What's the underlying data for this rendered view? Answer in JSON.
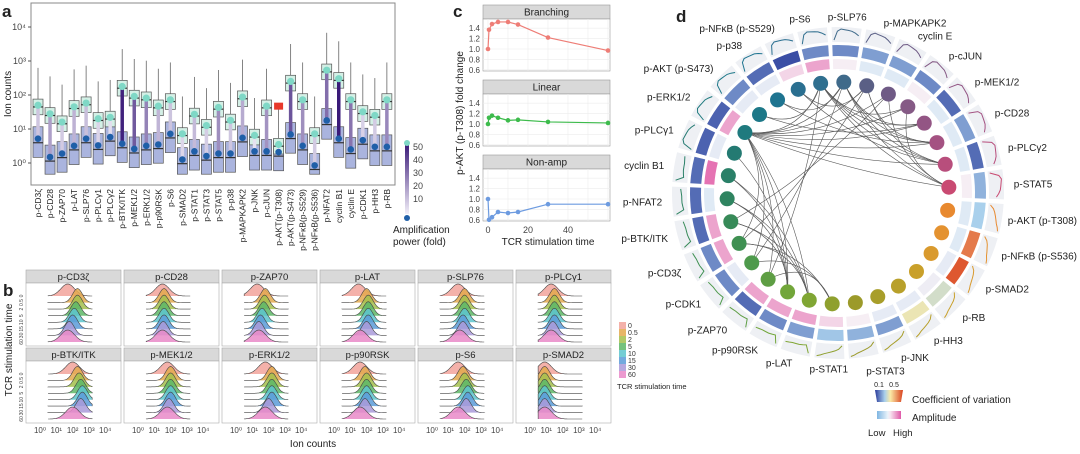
{
  "panel_labels": {
    "a": "a",
    "b": "b",
    "c": "c",
    "d": "d"
  },
  "chart_data": [
    {
      "type": "box",
      "panel": "a",
      "ylabel": "Ion counts",
      "yscale": "log",
      "yticks": [
        "10⁰",
        "10¹",
        "10²",
        "10³",
        "10⁴"
      ],
      "ylim": [
        0.4,
        30000
      ],
      "categories": [
        "p-CD3ζ",
        "p-CD28",
        "p-ZAP70",
        "p-LAT",
        "p-SLP76",
        "p-PLCγ1",
        "p-PLCγ2",
        "p-BTK/ITK",
        "p-MEK1/2",
        "p-ERK1/2",
        "p-p90RSK",
        "p-S6",
        "p-SMAD2",
        "p-STAT1",
        "p-STAT3",
        "p-STAT5",
        "p-p38",
        "p-MAPKAPK2",
        "p-JNK",
        "p-cJUN",
        "p-AKT(p-T308)",
        "p-AKT(p-S473)",
        "p-NFκB(p-S529)",
        "p-NFκB(p-S536)",
        "p-NFAT2",
        "cyclin B1",
        "cyclin E",
        "p-CDK1",
        "p-HH3",
        "p-RB"
      ],
      "amplified_median": [
        50,
        28,
        16,
        45,
        58,
        20,
        22,
        178,
        91,
        81,
        47,
        72,
        7.2,
        27,
        12.6,
        43,
        18,
        87,
        6.5,
        47,
        3.5,
        251,
        72,
        7.2,
        537,
        302,
        72,
        32,
        25,
        72
      ],
      "baseline_median": [
        5.2,
        1.5,
        1.9,
        3.2,
        5.2,
        3.3,
        5.8,
        3.7,
        2.6,
        3.2,
        3.5,
        7.2,
        1.26,
        2.2,
        1.6,
        1.9,
        1.9,
        5.5,
        2.2,
        2.2,
        2.1,
        6.9,
        3.2,
        0.85,
        17.8,
        5.2,
        2.5,
        4.7,
        3.0,
        3.0
      ],
      "highlight": {
        "category": "p-AKT(p-T308)",
        "value": 47,
        "color": "#e8392b"
      },
      "legend": {
        "title_line1": "Amplification",
        "title_line2": "power (fold)",
        "ticks": [
          "50",
          "40",
          "30",
          "20",
          "10"
        ],
        "range": [
          1,
          55
        ],
        "low_color": "#f1eef8",
        "high_color": "#3a1a78"
      }
    },
    {
      "type": "ridgeline",
      "panel": "b",
      "xlabel": "Ion counts",
      "ylabel": "TCR stimulation time",
      "xticks": [
        "10⁰",
        "10¹",
        "10²",
        "10³",
        "10⁴"
      ],
      "times": [
        "0",
        "0.5",
        "2",
        "5",
        "10",
        "15",
        "30",
        "60"
      ],
      "time_colors": [
        "#f2a39b",
        "#e3a94e",
        "#a3bf4c",
        "#5db766",
        "#5cc4cc",
        "#5a9bd8",
        "#a99ad9",
        "#e98ac8"
      ],
      "legend_title": "TCR stimulation time",
      "facets": [
        {
          "name": "p-CD3ζ",
          "peak_log10": [
            1.7,
            2.3,
            2.3,
            2.2,
            2.1,
            2.0,
            1.8,
            1.7
          ]
        },
        {
          "name": "p-CD28",
          "peak_log10": [
            1.5,
            1.6,
            1.6,
            1.6,
            1.6,
            1.6,
            1.55,
            1.5
          ]
        },
        {
          "name": "p-ZAP70",
          "peak_log10": [
            1.3,
            1.8,
            1.75,
            1.7,
            1.6,
            1.5,
            1.4,
            1.4
          ]
        },
        {
          "name": "p-LAT",
          "peak_log10": [
            1.5,
            2.0,
            2.1,
            2.1,
            2.1,
            2.1,
            2.0,
            1.6
          ]
        },
        {
          "name": "p-SLP76",
          "peak_log10": [
            1.6,
            2.0,
            2.0,
            2.0,
            2.0,
            1.9,
            1.9,
            1.7
          ]
        },
        {
          "name": "p-PLCγ1",
          "peak_log10": [
            1.3,
            1.5,
            1.5,
            1.5,
            1.5,
            1.5,
            1.4,
            1.3
          ]
        },
        {
          "name": "p-BTK/ITK",
          "peak_log10": [
            2.0,
            2.3,
            2.4,
            2.5,
            2.6,
            2.6,
            2.5,
            2.0
          ]
        },
        {
          "name": "p-MEK1/2",
          "peak_log10": [
            1.8,
            2.0,
            2.0,
            2.0,
            2.0,
            2.0,
            1.9,
            1.8
          ]
        },
        {
          "name": "p-ERK1/2",
          "peak_log10": [
            1.8,
            2.2,
            2.2,
            2.2,
            2.2,
            2.2,
            2.0,
            1.8
          ]
        },
        {
          "name": "p-p90RSK",
          "peak_log10": [
            1.6,
            1.9,
            2.0,
            2.0,
            2.0,
            2.0,
            1.9,
            1.6
          ]
        },
        {
          "name": "p-S6",
          "peak_log10": [
            1.6,
            1.9,
            2.0,
            2.1,
            2.2,
            2.2,
            2.1,
            1.6
          ]
        },
        {
          "name": "p-SMAD2",
          "peak_log10": [
            0.9,
            0.9,
            0.9,
            0.9,
            0.9,
            0.9,
            0.9,
            0.9
          ]
        }
      ]
    },
    {
      "type": "line",
      "panel": "c",
      "ylabel": "p-AKT (p-T308) fold change",
      "xlabel": "TCR stimulation time",
      "x": [
        0,
        0.5,
        2,
        5,
        10,
        15,
        30,
        60
      ],
      "xticks": [
        "0",
        "20",
        "40"
      ],
      "yticks": [
        "1.4",
        "1.2",
        "1.0",
        "0.8",
        "0.6"
      ],
      "ylim": [
        0.55,
        1.58
      ],
      "series": [
        {
          "name": "Branching",
          "color": "#ee7d76",
          "values": [
            1.0,
            1.37,
            1.48,
            1.52,
            1.52,
            1.47,
            1.22,
            0.97
          ]
        },
        {
          "name": "Linear",
          "color": "#3dbb4c",
          "values": [
            1.0,
            1.12,
            1.16,
            1.12,
            1.07,
            1.08,
            1.04,
            1.02
          ]
        },
        {
          "name": "Non-amp",
          "color": "#6d9be0",
          "values": [
            1.0,
            0.6,
            0.65,
            0.75,
            0.73,
            0.75,
            0.9,
            0.9
          ]
        }
      ]
    },
    {
      "type": "network",
      "panel": "d",
      "nodes": [
        "p-S6",
        "p-SLP76",
        "p-MAPKAPK2",
        "cyclin E",
        "p-cJUN",
        "p-MEK1/2",
        "p-CD28",
        "p-PLCγ2",
        "p-STAT5",
        "p-AKT (p-T308)",
        "p-NFκB (p-S536)",
        "p-SMAD2",
        "p-RB",
        "p-HH3",
        "p-JNK",
        "p-STAT3",
        "p-STAT1",
        "p-LAT",
        "p-p90RSK",
        "p-ZAP70",
        "p-CDK1",
        "p-CD3ζ",
        "p-BTK/ITK",
        "p-NFAT2",
        "cyclin B1",
        "p-PLCγ1",
        "p-ERK1/2",
        "p-AKT (p-S473)",
        "p-p38",
        "p-NFκB (p-S529)"
      ],
      "node_colors": [
        "#2f6f8f",
        "#3f6a8a",
        "#5a5f85",
        "#6f5a85",
        "#855a85",
        "#935584",
        "#a45282",
        "#b84e7c",
        "#c94a72",
        "#e8892f",
        "#e49230",
        "#d99a2e",
        "#c9a02a",
        "#b8a02a",
        "#a89e2a",
        "#9c9a2a",
        "#8fa02e",
        "#80a634",
        "#72a63a",
        "#5e9e44",
        "#4e9a4c",
        "#3f9052",
        "#378a58",
        "#2f8460",
        "#2a8068",
        "#247a72",
        "#1f7a7e",
        "#1d7888",
        "#1e7490",
        "#2a6f90"
      ],
      "amplitude": [
        0.8,
        0.5,
        0.2,
        0.2,
        0.5,
        0.2,
        0.2,
        0.2,
        0.5,
        0.2,
        0.2,
        0.3,
        0.4,
        0.3,
        0.3,
        0.5,
        0.6,
        0.8,
        0.8,
        0.8,
        0.3,
        0.8,
        0.8,
        0.2,
        1.0,
        0.3,
        0.8,
        0.3,
        0.3,
        0.6
      ],
      "coefficient_of_variation": [
        0.18,
        0.18,
        0.2,
        0.2,
        0.18,
        0.15,
        0.2,
        0.15,
        0.22,
        0.25,
        0.45,
        0.48,
        0.3,
        0.33,
        0.2,
        0.22,
        0.24,
        0.2,
        0.18,
        0.15,
        0.18,
        0.18,
        0.15,
        0.15,
        0.15,
        0.14,
        0.14,
        0.18,
        0.15,
        0.12
      ],
      "dynamics": [
        "branching",
        "branching",
        "branching",
        "branching",
        "branching",
        "branching",
        "branching",
        "branching",
        "branching",
        "linear",
        "linear",
        "linear",
        "linear",
        "linear",
        "linear",
        "linear",
        "linear",
        "non-amp",
        "non-amp",
        "non-amp",
        "non-amp",
        "non-amp",
        "non-amp",
        "non-amp",
        "non-amp",
        "branching",
        "branching",
        "branching",
        "branching",
        "branching"
      ],
      "edges": [
        [
          26,
          0
        ],
        [
          26,
          1
        ],
        [
          26,
          2
        ],
        [
          26,
          3
        ],
        [
          26,
          4
        ],
        [
          26,
          5
        ],
        [
          26,
          6
        ],
        [
          26,
          7
        ],
        [
          26,
          8
        ],
        [
          26,
          19
        ],
        [
          26,
          20
        ],
        [
          26,
          21
        ],
        [
          26,
          17
        ],
        [
          26,
          18
        ],
        [
          27,
          0
        ],
        [
          27,
          5
        ],
        [
          28,
          1
        ],
        [
          28,
          6
        ],
        [
          29,
          7
        ],
        [
          0,
          4
        ],
        [
          0,
          5
        ],
        [
          0,
          6
        ],
        [
          0,
          7
        ],
        [
          0,
          8
        ],
        [
          1,
          5
        ],
        [
          1,
          6
        ],
        [
          1,
          7
        ],
        [
          1,
          8
        ],
        [
          2,
          6
        ],
        [
          2,
          7
        ],
        [
          3,
          8
        ],
        [
          4,
          8
        ],
        [
          29,
          2
        ],
        [
          0,
          19
        ],
        [
          1,
          20
        ],
        [
          23,
          17
        ],
        [
          23,
          18
        ],
        [
          22,
          17
        ],
        [
          22,
          18
        ],
        [
          21,
          17
        ],
        [
          21,
          16
        ],
        [
          20,
          16
        ],
        [
          24,
          17
        ],
        [
          24,
          18
        ],
        [
          19,
          16
        ],
        [
          25,
          18
        ],
        [
          2,
          21
        ],
        [
          3,
          22
        ]
      ],
      "legend": {
        "cv_title": "Coefficient of variation",
        "cv_ticks": [
          "0.1",
          "0.5"
        ],
        "amp_title": "Amplitude",
        "amp_low": "Low",
        "amp_high": "High"
      }
    }
  ]
}
